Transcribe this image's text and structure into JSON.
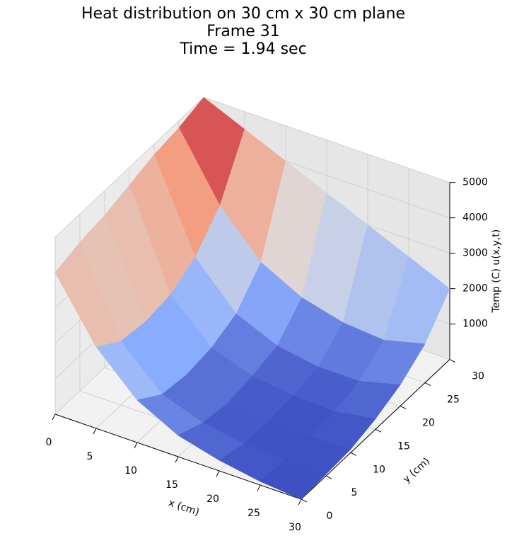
{
  "chart_data": {
    "type": "surface",
    "title": [
      "Heat distribution on 30 cm x 30 cm plane",
      "Frame 31",
      "Time = 1.94 sec"
    ],
    "x_label": "x (cm)",
    "y_label": "y (cm)",
    "z_label": "Temp (C) u(x,y,t)",
    "x": [
      0,
      5,
      10,
      15,
      20,
      25,
      30
    ],
    "y": [
      0,
      5,
      10,
      15,
      20,
      25,
      30
    ],
    "z": [
      [
        4000,
        2300,
        1200,
        600,
        300,
        100,
        0
      ],
      [
        4200,
        1800,
        700,
        300,
        100,
        50,
        50
      ],
      [
        4300,
        1700,
        600,
        200,
        100,
        50,
        100
      ],
      [
        4500,
        1800,
        700,
        300,
        150,
        100,
        300
      ],
      [
        4700,
        2200,
        1000,
        500,
        300,
        300,
        600
      ],
      [
        4800,
        3000,
        1800,
        1200,
        900,
        800,
        1100
      ],
      [
        5000,
        4500,
        4000,
        3500,
        3000,
        2500,
        2000
      ]
    ],
    "colormap": "coolwarm",
    "xlim": [
      0,
      30
    ],
    "ylim": [
      0,
      30
    ],
    "zlim": [
      0,
      5000
    ],
    "xticks": [
      0,
      5,
      10,
      15,
      20,
      25,
      30
    ],
    "yticks": [
      0,
      5,
      10,
      15,
      20,
      25,
      30
    ],
    "zticks": [
      1000,
      2000,
      3000,
      4000,
      5000
    ],
    "grid": true
  }
}
